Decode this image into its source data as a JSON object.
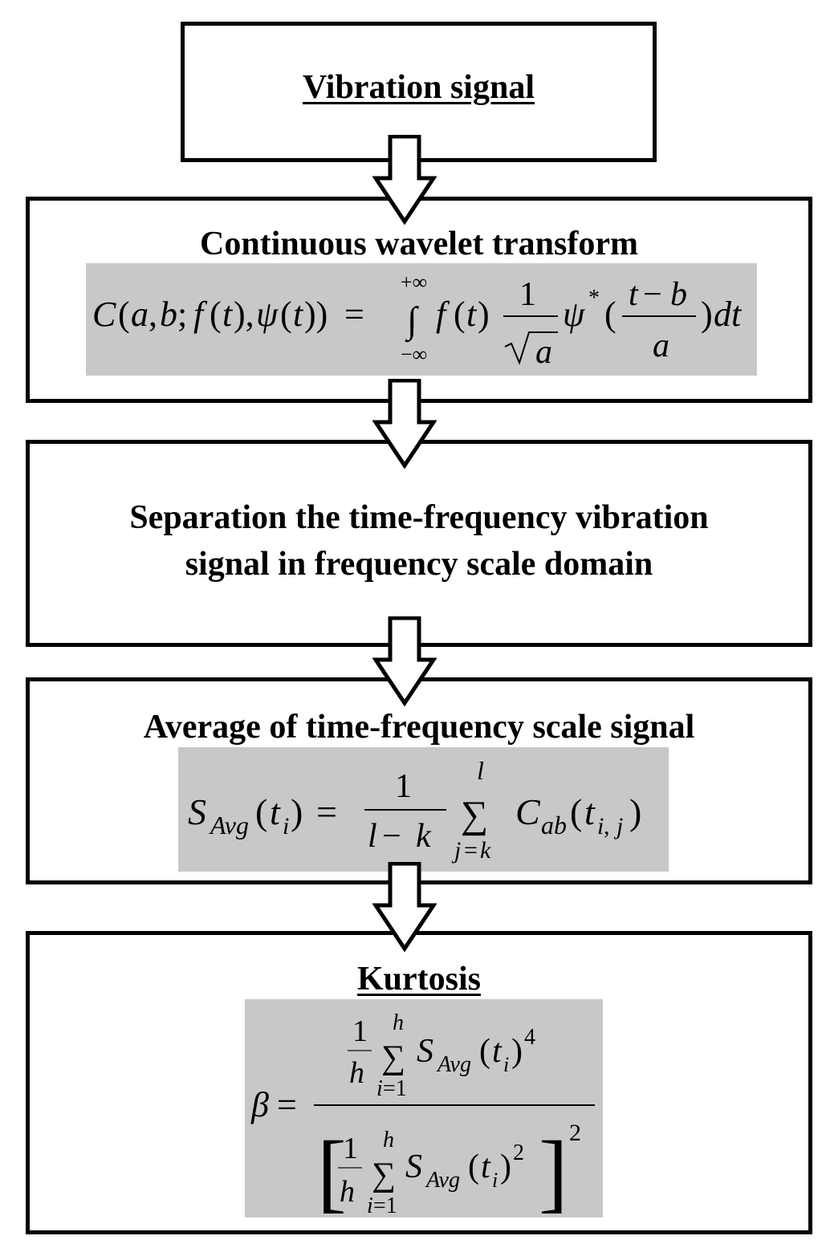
{
  "steps": [
    {
      "title": "Vibration signal"
    },
    {
      "title": "Continuous wavelet transform"
    },
    {
      "title_line1": "Separation the time-frequency vibration",
      "title_line2": "signal in frequency scale domain"
    },
    {
      "title": "Average of time-frequency scale signal"
    },
    {
      "title": "Kurtosis"
    }
  ],
  "colors": {
    "box_border": "#000000",
    "formula_bg": "#c8c8c8",
    "arrow_fill": "#ffffff"
  }
}
